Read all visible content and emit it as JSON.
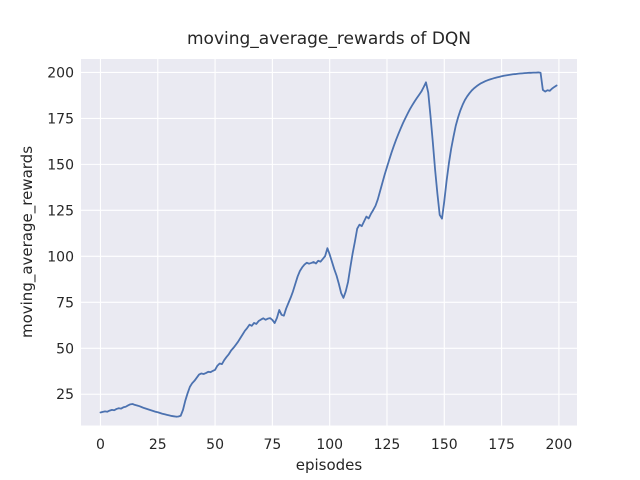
{
  "figure": {
    "title": "moving_average_rewards of DQN"
  },
  "chart_data": {
    "type": "line",
    "title": "moving_average_rewards of DQN",
    "xlabel": "episodes",
    "ylabel": "moving_average_rewards",
    "xlim": [
      -8.5,
      207.9
    ],
    "ylim": [
      8,
      207.3
    ],
    "x_ticks": [
      0,
      25,
      50,
      75,
      100,
      125,
      150,
      175,
      200
    ],
    "y_ticks": [
      25,
      50,
      75,
      100,
      125,
      150,
      175,
      200
    ],
    "grid": true,
    "legend_position": "none",
    "style": "seaborn-darkgrid",
    "plot_background": "#EAEAF2",
    "grid_color": "#FFFFFF",
    "line_color": "#4C72B0",
    "text_color": "#262626",
    "series": [
      {
        "name": "moving_average_rewards",
        "x": [
          0,
          1,
          2,
          3,
          4,
          5,
          6,
          7,
          8,
          9,
          10,
          11,
          12,
          13,
          14,
          15,
          16,
          17,
          18,
          19,
          20,
          21,
          22,
          23,
          24,
          25,
          26,
          27,
          28,
          29,
          30,
          31,
          32,
          33,
          34,
          35,
          36,
          37,
          38,
          39,
          40,
          41,
          42,
          43,
          44,
          45,
          46,
          47,
          48,
          49,
          50,
          51,
          52,
          53,
          54,
          55,
          56,
          57,
          58,
          59,
          60,
          61,
          62,
          63,
          64,
          65,
          66,
          67,
          68,
          69,
          70,
          71,
          72,
          73,
          74,
          75,
          76,
          77,
          78,
          79,
          80,
          81,
          82,
          83,
          84,
          85,
          86,
          87,
          88,
          89,
          90,
          91,
          92,
          93,
          94,
          95,
          96,
          97,
          98,
          99,
          100,
          101,
          102,
          103,
          104,
          105,
          106,
          107,
          108,
          109,
          110,
          111,
          112,
          113,
          114,
          115,
          116,
          117,
          118,
          119,
          120,
          121,
          122,
          123,
          124,
          125,
          126,
          127,
          128,
          129,
          130,
          131,
          132,
          133,
          134,
          135,
          136,
          137,
          138,
          139,
          140,
          141,
          142,
          143,
          144,
          145,
          146,
          147,
          148,
          149,
          150,
          151,
          152,
          153,
          154,
          155,
          156,
          157,
          158,
          159,
          160,
          161,
          162,
          163,
          164,
          165,
          166,
          167,
          168,
          169,
          170,
          171,
          172,
          173,
          174,
          175,
          176,
          177,
          178,
          179,
          180,
          181,
          182,
          183,
          184,
          185,
          186,
          187,
          188,
          189,
          190,
          191,
          192,
          193,
          194,
          195,
          196,
          197,
          198,
          199
        ],
        "y": [
          15.1,
          15.4,
          15.7,
          15.5,
          16.1,
          16.5,
          16.3,
          17.0,
          17.4,
          17.2,
          17.9,
          18.2,
          18.9,
          19.5,
          19.7,
          19.2,
          18.9,
          18.5,
          18.0,
          17.5,
          17.1,
          16.7,
          16.3,
          15.9,
          15.5,
          15.2,
          14.8,
          14.4,
          14.1,
          13.8,
          13.5,
          13.2,
          13.0,
          12.8,
          12.9,
          13.3,
          16.5,
          21.5,
          25.5,
          29.0,
          31.0,
          32.3,
          34.0,
          35.7,
          36.3,
          36.0,
          36.5,
          37.2,
          37.0,
          37.7,
          38.3,
          40.5,
          41.7,
          41.4,
          43.6,
          45.3,
          46.8,
          48.8,
          50.2,
          51.8,
          53.5,
          55.5,
          57.5,
          59.5,
          61.0,
          62.8,
          62.2,
          63.8,
          63.2,
          64.8,
          65.6,
          66.3,
          65.5,
          66.1,
          66.4,
          65.4,
          63.7,
          66.5,
          70.8,
          68.2,
          67.7,
          71.6,
          74.6,
          77.6,
          81.0,
          85.0,
          89.0,
          92.0,
          94.0,
          95.5,
          96.5,
          96.0,
          96.4,
          96.9,
          96.1,
          97.6,
          97.1,
          98.6,
          100.1,
          104.4,
          101.0,
          97.0,
          93.0,
          89.5,
          85.0,
          80.0,
          77.4,
          80.9,
          86.0,
          94.0,
          101.5,
          108.0,
          115.0,
          117.2,
          116.4,
          119.0,
          121.6,
          120.6,
          123.1,
          125.2,
          127.5,
          131.0,
          135.5,
          140.0,
          144.5,
          148.6,
          152.6,
          156.5,
          160.1,
          163.5,
          166.6,
          169.6,
          172.5,
          175.1,
          177.6,
          180.0,
          182.1,
          184.1,
          186.0,
          187.8,
          189.6,
          192.0,
          194.6,
          189.0,
          176.0,
          162.0,
          147.0,
          134.0,
          122.5,
          120.5,
          130.0,
          141.0,
          150.5,
          158.5,
          165.0,
          171.0,
          175.5,
          179.3,
          182.4,
          185.0,
          187.0,
          188.7,
          190.2,
          191.4,
          192.4,
          193.3,
          194.1,
          194.7,
          195.3,
          195.8,
          196.2,
          196.6,
          197.0,
          197.3,
          197.6,
          197.9,
          198.2,
          198.4,
          198.6,
          198.8,
          199.0,
          199.1,
          199.3,
          199.4,
          199.5,
          199.6,
          199.7,
          199.8,
          199.8,
          199.9,
          199.9,
          200.0,
          199.8,
          190.5,
          189.6,
          190.3,
          190.0,
          191.2,
          192.1,
          192.9
        ]
      }
    ]
  }
}
